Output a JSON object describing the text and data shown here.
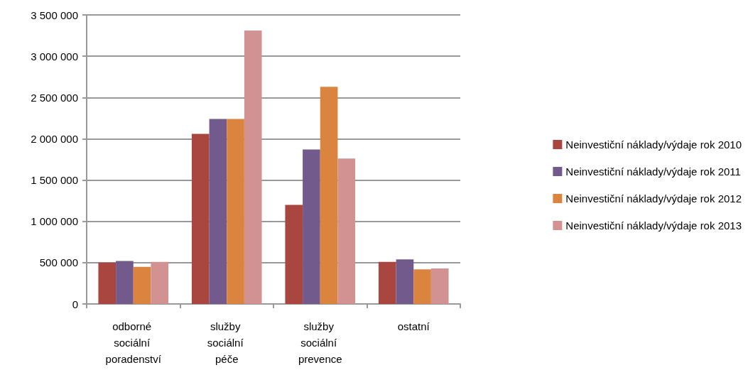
{
  "chart_data": {
    "type": "bar",
    "categories": [
      "odborné sociální poradenství",
      "služby sociální péče",
      "služby sociální prevence",
      "ostatní"
    ],
    "series": [
      {
        "name": "Neinvestiční náklady/výdaje rok 2010",
        "color": "#a9463f",
        "values": [
          500000,
          2060000,
          1200000,
          510000
        ]
      },
      {
        "name": "Neinvestiční náklady/výdaje rok 2011",
        "color": "#725a8c",
        "values": [
          520000,
          2240000,
          1870000,
          540000
        ]
      },
      {
        "name": "Neinvestiční náklady/výdaje rok 2012",
        "color": "#db843f",
        "values": [
          450000,
          2240000,
          2630000,
          420000
        ]
      },
      {
        "name": "Neinvestiční náklady/výdaje rok 2013",
        "color": "#d29292",
        "values": [
          510000,
          3310000,
          1760000,
          430000
        ]
      }
    ],
    "ylim": [
      0,
      3500000
    ],
    "yticks": [
      {
        "value": 0,
        "label": "0"
      },
      {
        "value": 500000,
        "label": "500 000"
      },
      {
        "value": 1000000,
        "label": "1 000 000"
      },
      {
        "value": 1500000,
        "label": "1 500 000"
      },
      {
        "value": 2000000,
        "label": "2 000 000"
      },
      {
        "value": 2500000,
        "label": "2 500 000"
      },
      {
        "value": 3000000,
        "label": "3 000 000"
      },
      {
        "value": 3500000,
        "label": "3 500 000"
      }
    ],
    "grid": "y",
    "legend": "right"
  }
}
